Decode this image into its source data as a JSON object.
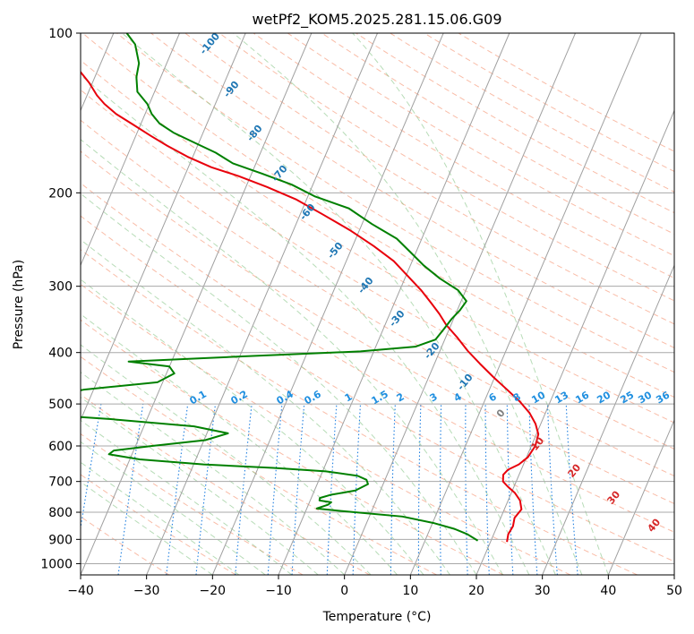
{
  "chart_data": {
    "type": "skew-t",
    "title": "wetPf2_KOM5.2025.281.15.06.G09",
    "xlabel": "Temperature (°C)",
    "ylabel": "Pressure (hPa)",
    "xlim": [
      -40,
      50
    ],
    "ylim": [
      1050,
      100
    ],
    "x_ticks": [
      "−40",
      "−30",
      "−20",
      "−10",
      "0",
      "10",
      "20",
      "30",
      "40",
      "50"
    ],
    "y_ticks": [
      "100",
      "200",
      "300",
      "400",
      "500",
      "600",
      "700",
      "800",
      "900",
      "1000"
    ],
    "temperature": {
      "name": "Temperature",
      "color": "#e8000b",
      "points": [
        [
          22.5,
          910
        ],
        [
          22.2,
          880
        ],
        [
          22.4,
          850
        ],
        [
          22.1,
          820
        ],
        [
          22.6,
          790
        ],
        [
          21.8,
          760
        ],
        [
          20.5,
          735
        ],
        [
          19.0,
          715
        ],
        [
          18.0,
          700
        ],
        [
          17.6,
          680
        ],
        [
          18.0,
          665
        ],
        [
          19.3,
          650
        ],
        [
          20.2,
          630
        ],
        [
          20.6,
          600
        ],
        [
          20.3,
          570
        ],
        [
          19.2,
          545
        ],
        [
          17.6,
          520
        ],
        [
          15.4,
          495
        ],
        [
          12.7,
          470
        ],
        [
          9.8,
          445
        ],
        [
          6.9,
          420
        ],
        [
          4.2,
          397
        ],
        [
          1.8,
          375
        ],
        [
          -0.7,
          355
        ],
        [
          -2.5,
          338
        ],
        [
          -4.5,
          322
        ],
        [
          -6.8,
          305
        ],
        [
          -9.7,
          287
        ],
        [
          -12.8,
          269
        ],
        [
          -16.8,
          252
        ],
        [
          -21.5,
          235
        ],
        [
          -26.8,
          219
        ],
        [
          -31.5,
          206
        ],
        [
          -36.8,
          195
        ],
        [
          -41.8,
          186
        ],
        [
          -46.5,
          179
        ],
        [
          -50.8,
          171
        ],
        [
          -54.6,
          163
        ],
        [
          -57.8,
          156
        ],
        [
          -61.0,
          149
        ],
        [
          -64.4,
          142
        ],
        [
          -66.8,
          136
        ],
        [
          -68.5,
          131
        ],
        [
          -70.5,
          124
        ],
        [
          -73.0,
          117
        ],
        [
          -76.5,
          109
        ],
        [
          -79.5,
          100
        ]
      ]
    },
    "dewpoint": {
      "name": "Dewpoint",
      "color": "#008000",
      "points": [
        [
          18.0,
          905
        ],
        [
          16.0,
          880
        ],
        [
          13.7,
          860
        ],
        [
          10.1,
          838
        ],
        [
          5.0,
          815
        ],
        [
          -2.5,
          800
        ],
        [
          -5.0,
          795
        ],
        [
          -8.5,
          787
        ],
        [
          -7.0,
          774
        ],
        [
          -6.7,
          766
        ],
        [
          -8.6,
          760
        ],
        [
          -8.7,
          752
        ],
        [
          -7.3,
          742
        ],
        [
          -3.8,
          728
        ],
        [
          -2.3,
          708
        ],
        [
          -2.8,
          695
        ],
        [
          -4.4,
          683
        ],
        [
          -9.5,
          670
        ],
        [
          -17.7,
          660
        ],
        [
          -28.5,
          650
        ],
        [
          -38.5,
          636
        ],
        [
          -43.5,
          622
        ],
        [
          -43.0,
          612
        ],
        [
          -37.5,
          600
        ],
        [
          -29.8,
          585
        ],
        [
          -26.8,
          568
        ],
        [
          -32.4,
          551
        ],
        [
          -45.5,
          534
        ],
        [
          -62.0,
          518
        ],
        [
          -77.0,
          507
        ],
        [
          -66.0,
          500
        ],
        [
          -57.0,
          485
        ],
        [
          -51.5,
          470
        ],
        [
          -40.8,
          455
        ],
        [
          -38.8,
          438
        ],
        [
          -40.0,
          425
        ],
        [
          -46.5,
          416
        ],
        [
          -30.0,
          407
        ],
        [
          -12.0,
          398
        ],
        [
          -4.0,
          390
        ],
        [
          -1.4,
          378
        ],
        [
          -0.8,
          361
        ],
        [
          -0.3,
          346
        ],
        [
          0.4,
          333
        ],
        [
          0.8,
          320
        ],
        [
          -1.2,
          305
        ],
        [
          -4.7,
          290
        ],
        [
          -8.0,
          274
        ],
        [
          -10.8,
          259
        ],
        [
          -13.8,
          244
        ],
        [
          -18.5,
          229
        ],
        [
          -23.0,
          214
        ],
        [
          -29.0,
          203
        ],
        [
          -33.2,
          193
        ],
        [
          -38.4,
          184
        ],
        [
          -43.5,
          176
        ],
        [
          -46.8,
          168
        ],
        [
          -50.6,
          161
        ],
        [
          -54.5,
          154
        ],
        [
          -57.2,
          148
        ],
        [
          -59.0,
          142
        ],
        [
          -60.3,
          136
        ],
        [
          -62.6,
          129
        ],
        [
          -63.7,
          121
        ],
        [
          -64.2,
          114
        ],
        [
          -66.0,
          105
        ],
        [
          -68.0,
          100
        ]
      ]
    },
    "isotherm_labels": [
      "-100",
      "-90",
      "-80",
      "-70",
      "-60",
      "-50",
      "-40",
      "-30",
      "-20",
      "-10",
      "0",
      "10",
      "20",
      "30",
      "40"
    ],
    "mixing_ratio_labels": [
      "0.1",
      "0.2",
      "0.4",
      "0.6",
      "1",
      "1.5",
      "2",
      "3",
      "4",
      "6",
      "8",
      "10",
      "13",
      "16",
      "20",
      "25",
      "30",
      "36"
    ],
    "mixing_ratio_values": [
      0.1,
      0.2,
      0.4,
      0.6,
      1,
      1.5,
      2,
      3,
      4,
      6,
      8,
      10,
      13,
      16,
      20,
      25,
      30,
      36
    ]
  }
}
